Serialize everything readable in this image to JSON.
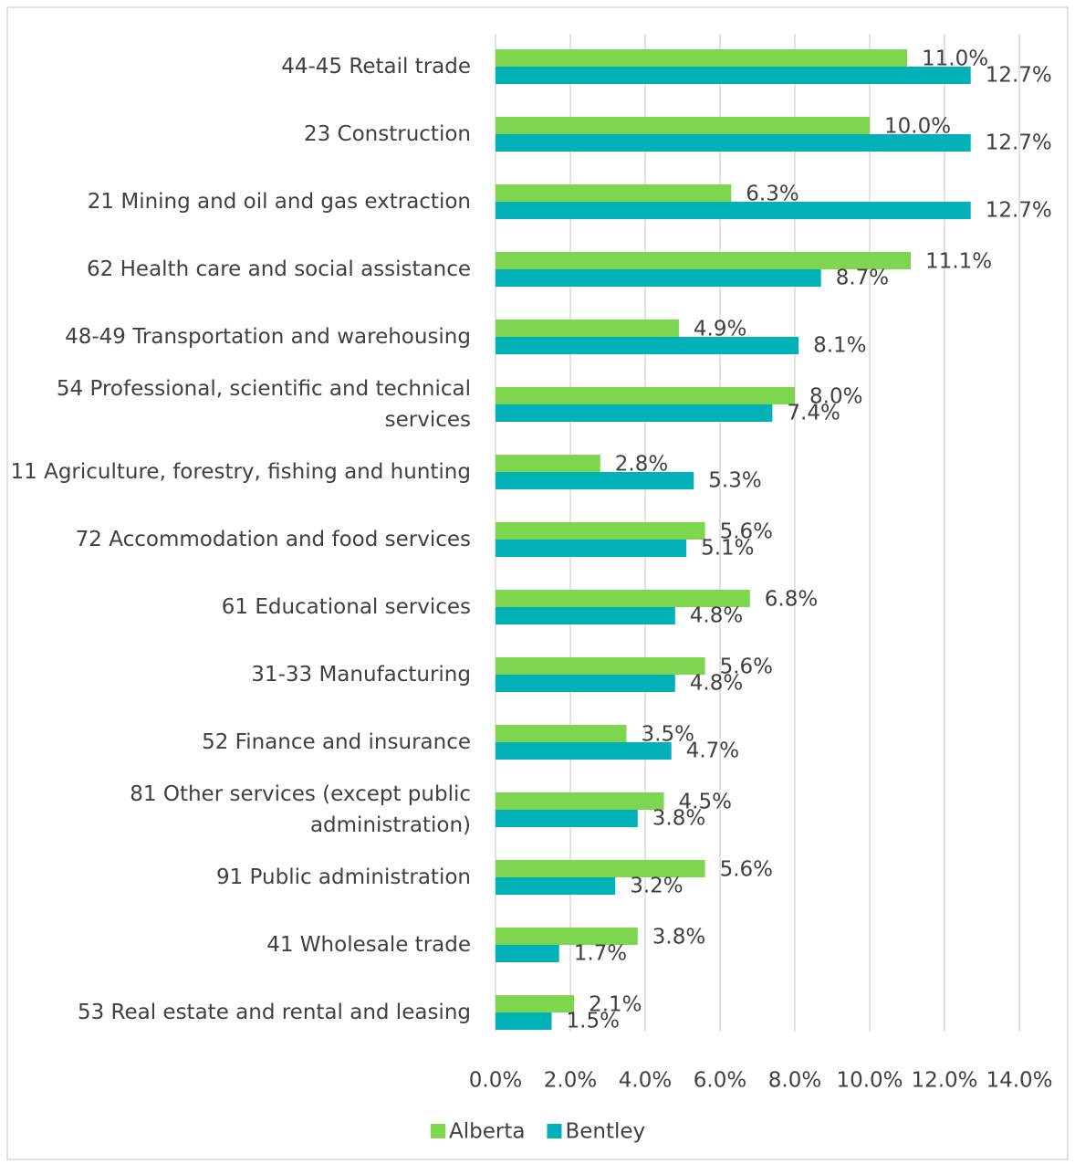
{
  "chart_data": {
    "type": "hbar",
    "categories": [
      "44-45 Retail trade",
      "23 Construction",
      "21 Mining and oil and gas extraction",
      "62 Health care and social assistance",
      "48-49 Transportation and warehousing",
      "54 Professional, scientific and technical services",
      "11 Agriculture, forestry, fishing and hunting",
      "72 Accommodation and food services",
      "61 Educational services",
      "31-33 Manufacturing",
      "52 Finance and insurance",
      "81 Other services (except public administration)",
      "91 Public administration",
      "41 Wholesale trade",
      "53 Real estate and rental and leasing"
    ],
    "series": [
      {
        "name": "Alberta",
        "color": "#7ed64f",
        "values": [
          11.0,
          10.0,
          6.3,
          11.1,
          4.9,
          8.0,
          2.8,
          5.6,
          6.8,
          5.6,
          3.5,
          4.5,
          5.6,
          3.8,
          2.1
        ],
        "value_labels": [
          "11.0%",
          "10.0%",
          "6.3%",
          "11.1%",
          "4.9%",
          "8.0%",
          "2.8%",
          "5.6%",
          "6.8%",
          "5.6%",
          "3.5%",
          "4.5%",
          "5.6%",
          "3.8%",
          "2.1%"
        ]
      },
      {
        "name": "Bentley",
        "color": "#00b1b8",
        "values": [
          12.7,
          12.7,
          12.7,
          8.7,
          8.1,
          7.4,
          5.3,
          5.1,
          4.8,
          4.8,
          4.7,
          3.8,
          3.2,
          1.7,
          1.5
        ],
        "value_labels": [
          "12.7%",
          "12.7%",
          "12.7%",
          "8.7%",
          "8.1%",
          "7.4%",
          "5.3%",
          "5.1%",
          "4.8%",
          "4.8%",
          "4.7%",
          "3.8%",
          "3.2%",
          "1.7%",
          "1.5%"
        ]
      }
    ],
    "xlim": [
      0,
      14
    ],
    "xticks": [
      {
        "value": 0,
        "label": "0.0%"
      },
      {
        "value": 2,
        "label": "2.0%"
      },
      {
        "value": 4,
        "label": "4.0%"
      },
      {
        "value": 6,
        "label": "6.0%"
      },
      {
        "value": 8,
        "label": "8.0%"
      },
      {
        "value": 10,
        "label": "10.0%"
      },
      {
        "value": 12,
        "label": "12.0%"
      },
      {
        "value": 14,
        "label": "14.0%"
      }
    ],
    "grid": true,
    "legend": "bottom"
  }
}
